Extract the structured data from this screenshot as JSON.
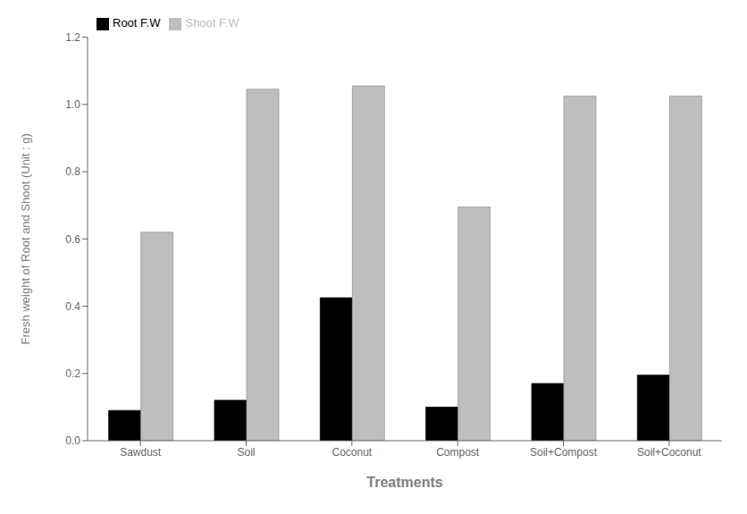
{
  "chart_data": {
    "type": "bar",
    "categories": [
      "Sawdust",
      "Soil",
      "Coconut",
      "Compost",
      "Soil+Compost",
      "Soil+Coconut"
    ],
    "series": [
      {
        "name": "Root F.W",
        "color": "#000000",
        "values": [
          0.09,
          0.12,
          0.425,
          0.1,
          0.17,
          0.195
        ]
      },
      {
        "name": "Shoot F.W",
        "color": "#bebebe",
        "values": [
          0.62,
          1.045,
          1.055,
          0.695,
          1.025,
          1.025
        ]
      }
    ],
    "xlabel": "Treatments",
    "ylabel": "Fresh weight of Root and Shoot (Unit : g)",
    "ylim": [
      0,
      1.2
    ],
    "yticks": [
      {
        "value": 0.0,
        "label": "0.0"
      },
      0.2,
      0.4,
      0.6,
      0.8,
      {
        "value": 1.0,
        "label": "1.0"
      },
      1.2
    ],
    "legend": "upper left",
    "grid": false
  }
}
